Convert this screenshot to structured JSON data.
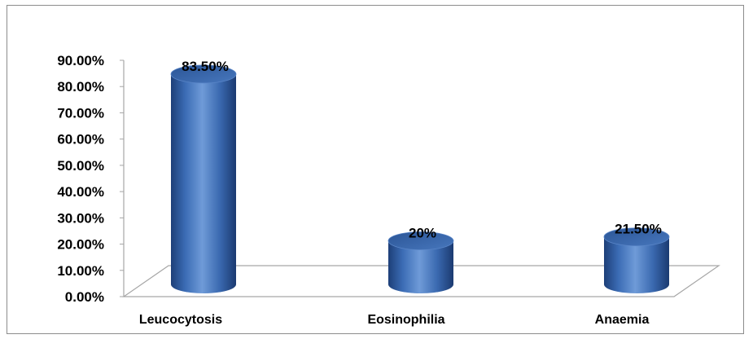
{
  "chart_data": {
    "type": "bar",
    "style": "3d-cylinder",
    "categories": [
      "Leucocytosis",
      "Eosinophilia",
      "Anaemia"
    ],
    "values": [
      83.5,
      20,
      21.5
    ],
    "data_labels": [
      "83.50%",
      "20%",
      "21.50%"
    ],
    "ylim": [
      0,
      90
    ],
    "yticks": [
      0,
      10,
      20,
      30,
      40,
      50,
      60,
      70,
      80,
      90
    ],
    "ytick_labels": [
      "0.00%",
      "10.00%",
      "20.00%",
      "30.00%",
      "40.00%",
      "50.00%",
      "60.00%",
      "70.00%",
      "80.00%",
      "90.00%"
    ],
    "bar_color": "#3d6fb5",
    "grid": false,
    "legend": "none"
  }
}
